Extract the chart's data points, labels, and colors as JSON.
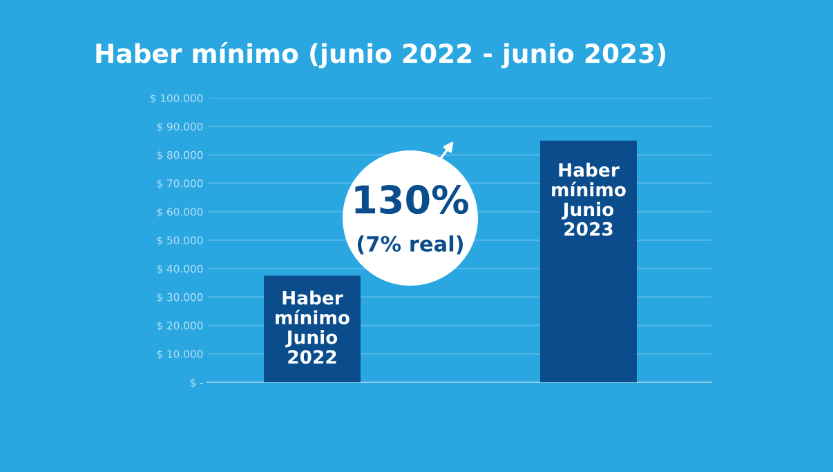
{
  "chart_data": {
    "type": "bar",
    "title": "Haber mínimo (junio 2022 - junio 2023)",
    "categories": [
      "Haber\nmínimo\nJunio\n2022",
      "Haber\nmínimo\nJunio\n2023"
    ],
    "values": [
      37500,
      85000
    ],
    "color": "#0b4d8c",
    "ylim": [
      0,
      100000
    ],
    "yticks": [
      {
        "value": 0,
        "label": "$ -"
      },
      {
        "value": 10000,
        "label": "$ 10.000"
      },
      {
        "value": 20000,
        "label": "$ 20.000"
      },
      {
        "value": 30000,
        "label": "$ 30.000"
      },
      {
        "value": 40000,
        "label": "$ 40.000"
      },
      {
        "value": 50000,
        "label": "$ 50.000"
      },
      {
        "value": 60000,
        "label": "$ 60.000"
      },
      {
        "value": 70000,
        "label": "$ 70.000"
      },
      {
        "value": 80000,
        "label": "$ 80.000"
      },
      {
        "value": 90000,
        "label": "$ 90.000"
      },
      {
        "value": 100000,
        "label": "$ 100.000"
      }
    ],
    "grid": "y",
    "annotations": [
      "130%",
      "(7% real)"
    ]
  }
}
